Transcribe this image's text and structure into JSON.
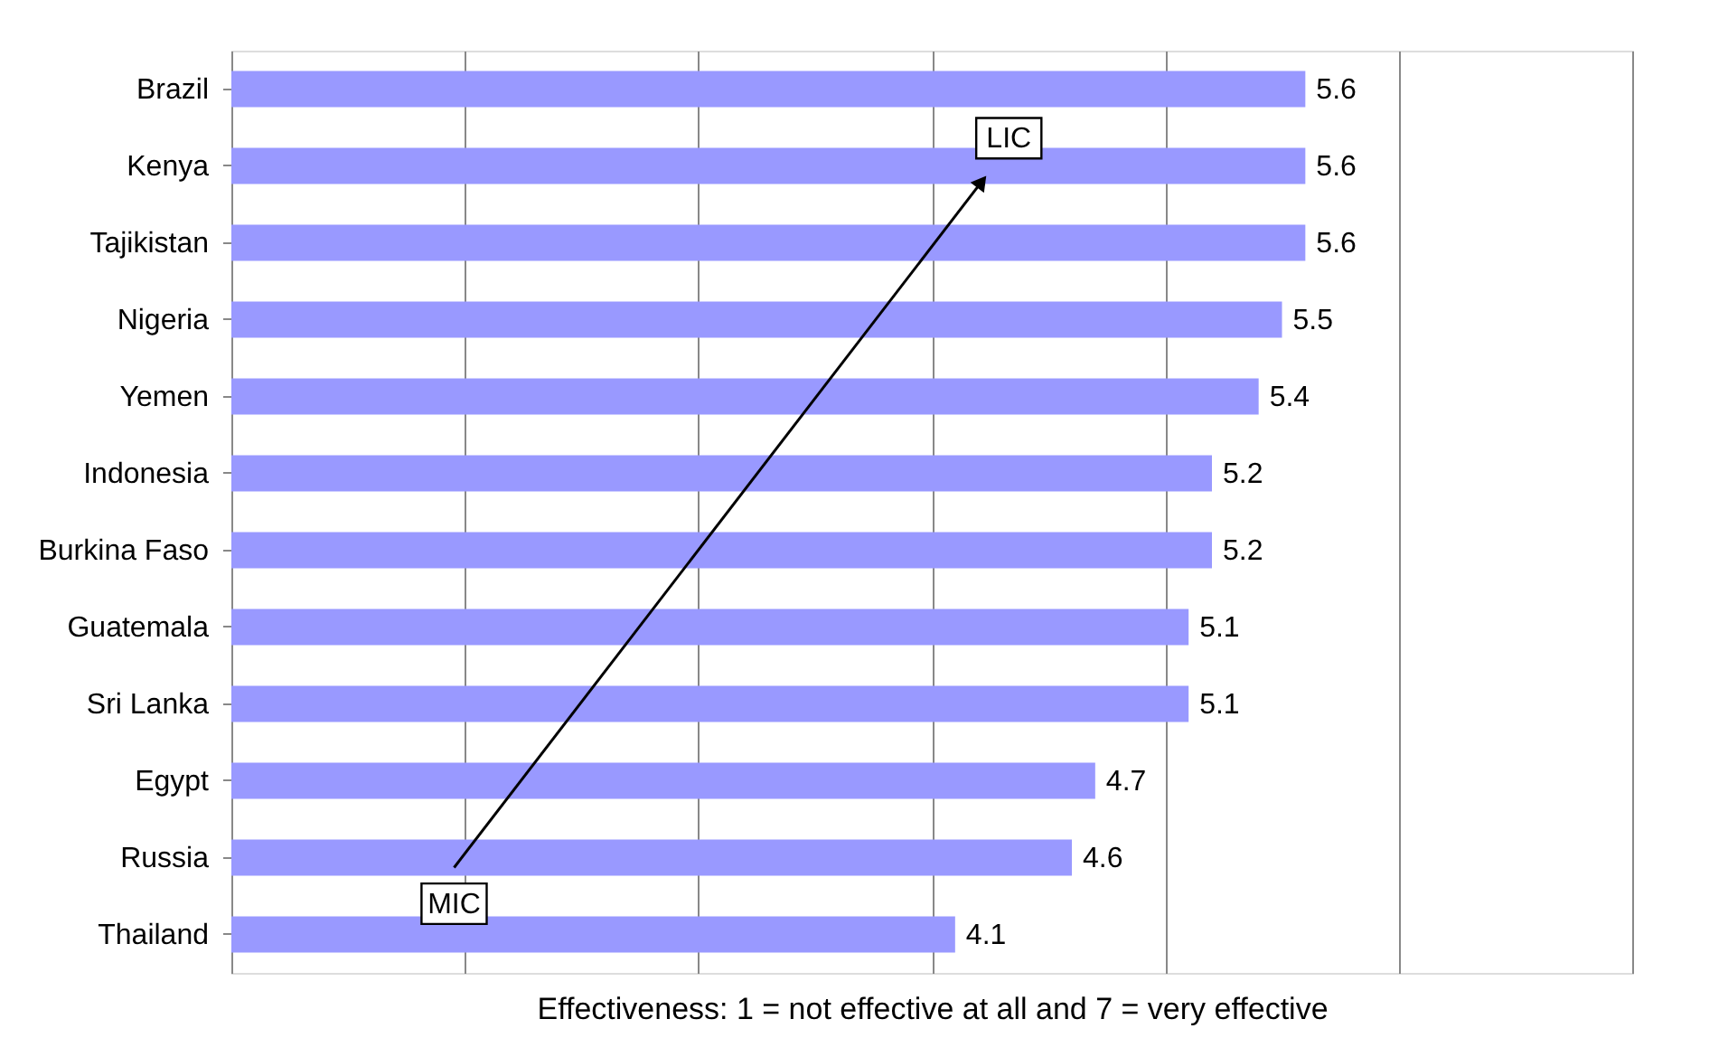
{
  "chart_data": {
    "type": "bar",
    "orientation": "horizontal",
    "categories": [
      "Brazil",
      "Kenya",
      "Tajikistan",
      "Nigeria",
      "Yemen",
      "Indonesia",
      "Burkina Faso",
      "Guatemala",
      "Sri Lanka",
      "Egypt",
      "Russia",
      "Thailand"
    ],
    "values": [
      5.6,
      5.6,
      5.6,
      5.5,
      5.4,
      5.2,
      5.2,
      5.1,
      5.1,
      4.7,
      4.6,
      4.1
    ],
    "value_labels": [
      "5.6",
      "5.6",
      "5.6",
      "5.5",
      "5.4",
      "5.2",
      "5.2",
      "5.1",
      "5.1",
      "4.7",
      "4.6",
      "4.1"
    ],
    "color": "#9999ff",
    "xlim": [
      1,
      7
    ],
    "xticks": [
      {
        "value": 1,
        "label": null
      },
      {
        "value": 2,
        "label": null
      },
      {
        "value": 3,
        "label": null
      },
      {
        "value": 4,
        "label": null
      },
      {
        "value": 5,
        "label": null
      },
      {
        "value": 6,
        "label": null
      },
      {
        "value": 7,
        "label": null
      }
    ],
    "tick_labels": "y",
    "grid": "x",
    "xlabel": "Effectiveness: 1 = not effective at all and 7 = very effective",
    "annotations": [
      "LIC",
      "MIC"
    ]
  }
}
